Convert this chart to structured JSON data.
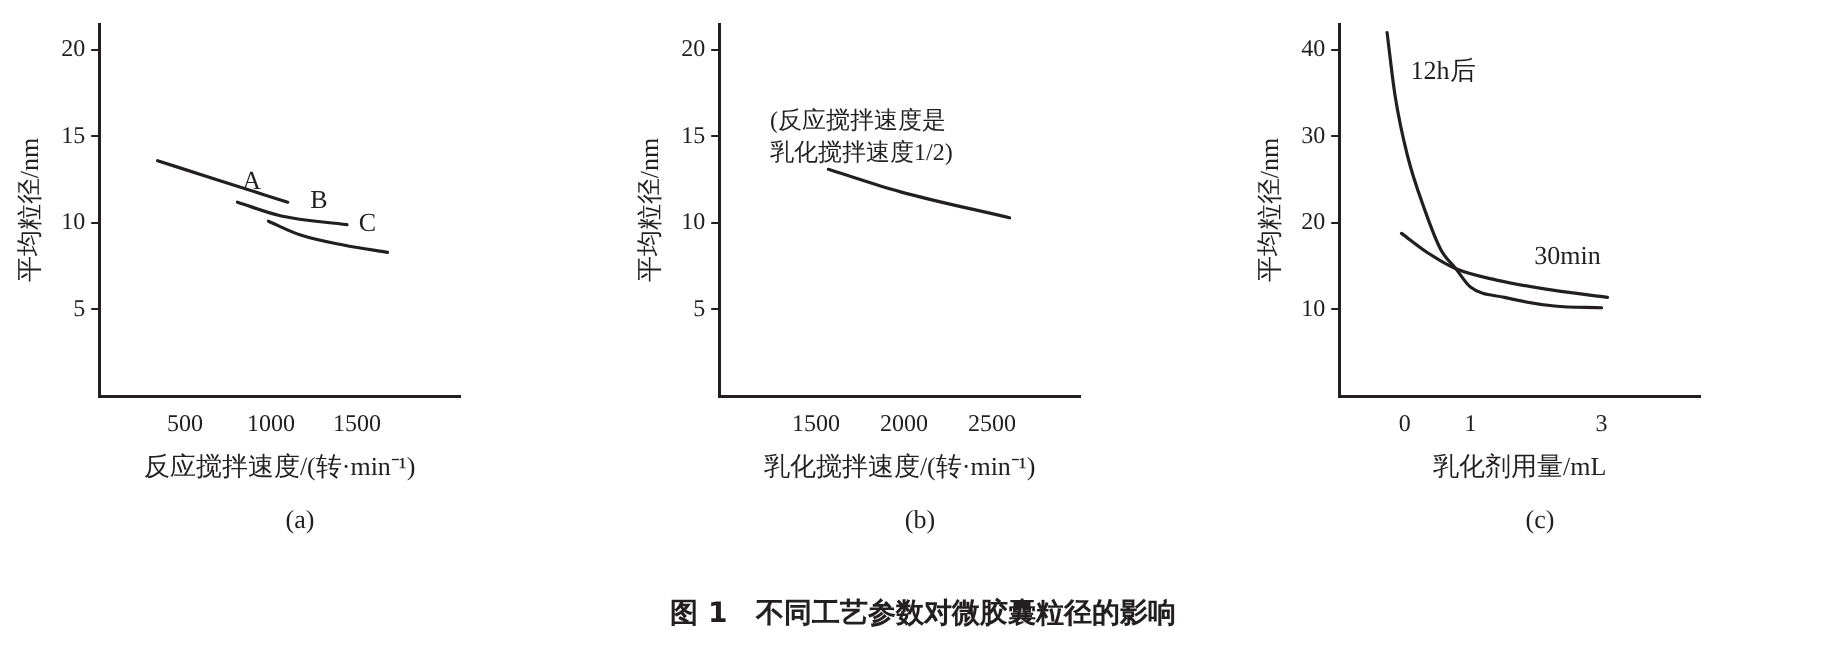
{
  "chart_data": [
    {
      "type": "line",
      "subtitle": "(a)",
      "xlabel": "反应搅拌速度/(转·min⁻¹)",
      "ylabel": "平均粒径/nm",
      "annotations": [
        "图 1　不同工艺参数对微胶囊粒径的影响"
      ],
      "xlim": [
        0,
        2100
      ],
      "xticks": [
        500,
        1000,
        1500
      ],
      "ylim": [
        0,
        21.5
      ],
      "yticks": [
        5,
        10,
        15,
        20
      ],
      "grid": false,
      "legend": false,
      "marker": "none",
      "line_style": "solid",
      "series": [
        {
          "name": "A",
          "color": "#231f20",
          "x": [
            340,
            685,
            1097
          ],
          "values": [
            13.6,
            12.5,
            11.2
          ]
        },
        {
          "name": "B",
          "color": "#231f20",
          "x": [
            805,
            1060,
            1442
          ],
          "values": [
            11.2,
            10.4,
            9.9
          ]
        },
        {
          "name": "C",
          "color": "#231f20",
          "x": [
            985,
            1172,
            1434,
            1678
          ],
          "values": [
            10.1,
            9.3,
            8.7,
            8.3
          ]
        }
      ]
    },
    {
      "type": "line",
      "subtitle": "(b)",
      "xlabel": "乳化搅拌速度/(转·min⁻¹)",
      "ylabel": "平均粒径/nm",
      "annotations": [
        "(反应搅拌速度是乳化搅拌速度1/2)"
      ],
      "xlim": [
        950,
        3000
      ],
      "xticks": [
        1500,
        2000,
        2500
      ],
      "ylim": [
        0,
        21.5
      ],
      "yticks": [
        5,
        10,
        15,
        20
      ],
      "grid": false,
      "legend": false,
      "marker": "none",
      "line_style": "solid",
      "series": [
        {
          "color": "#231f20",
          "x": [
            1570,
            1980,
            2600
          ],
          "values": [
            13.1,
            11.8,
            10.3
          ]
        }
      ]
    },
    {
      "type": "line",
      "subtitle": "(c)",
      "xlabel": "乳化剂用量/mL",
      "ylabel": "平均粒径/nm",
      "xlim": [
        -1,
        4.5
      ],
      "xticks": [
        0,
        1,
        3
      ],
      "ylim": [
        0,
        43
      ],
      "yticks": [
        10,
        20,
        30,
        40
      ],
      "grid": false,
      "legend": false,
      "marker": "none",
      "line_style": "solid",
      "series": [
        {
          "name": "12h后",
          "color": "#231f20",
          "x": [
            -0.27,
            -0.15,
            0.04,
            0.3,
            0.55,
            0.78,
            1.0,
            1.52,
            2.28,
            3.0
          ],
          "values": [
            42,
            34.8,
            27.8,
            21.6,
            16.9,
            14.7,
            12.6,
            11.4,
            10.4,
            10.2
          ]
        },
        {
          "name": "30min",
          "color": "#231f20",
          "x": [
            -0.05,
            0.36,
            0.78,
            1.4,
            2.28,
            3.09
          ],
          "values": [
            18.8,
            16.5,
            14.7,
            13.4,
            12.2,
            11.4
          ]
        }
      ]
    }
  ]
}
